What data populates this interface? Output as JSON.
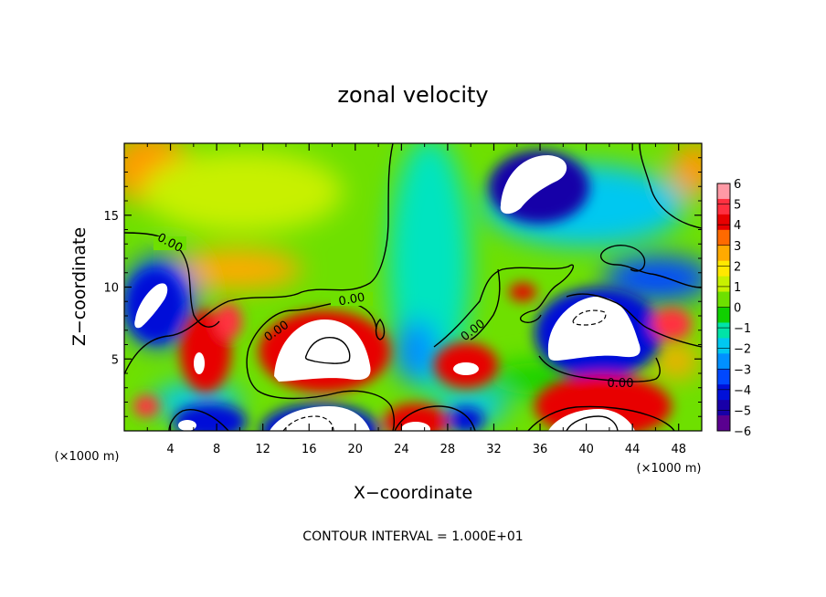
{
  "chart_data": {
    "type": "heatmap",
    "title": "zonal velocity",
    "xlabel": "X−coordinate",
    "ylabel": "Z−coordinate",
    "x_unit": "(×1000 m)",
    "z_unit": "(×1000 m)",
    "footer": "CONTOUR INTERVAL = 1.000E+01",
    "xlim": [
      0,
      50
    ],
    "ylim": [
      0,
      20
    ],
    "x_ticks": [
      "4",
      "8",
      "12",
      "16",
      "20",
      "24",
      "28",
      "32",
      "36",
      "40",
      "44",
      "48"
    ],
    "y_ticks": [
      "5",
      "10",
      "15"
    ],
    "colorbar": {
      "range": [
        -6,
        6
      ],
      "tick_labels": [
        "6",
        "5",
        "4",
        "3",
        "2",
        "1",
        "0",
        "−1",
        "−2",
        "−3",
        "−4",
        "−5",
        "−6"
      ],
      "colors": [
        "#ff9aa6",
        "#ff3040",
        "#e80000",
        "#ff6a00",
        "#ffaa00",
        "#ffe800",
        "#c8f000",
        "#6ee000",
        "#10d000",
        "#00e4a8",
        "#00c8f0",
        "#0090ff",
        "#0048ff",
        "#0010d8",
        "#1800a8",
        "#5a0090"
      ]
    },
    "contour_labels": [
      "0.00",
      "0.00",
      "0.00",
      "0.00",
      "0.00"
    ]
  }
}
